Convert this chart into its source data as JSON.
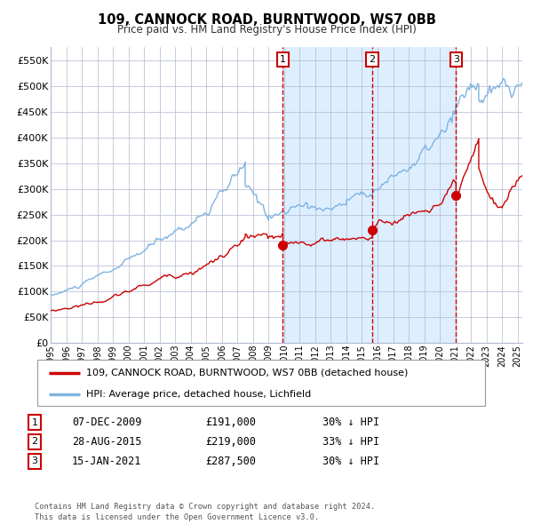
{
  "title": "109, CANNOCK ROAD, BURNTWOOD, WS7 0BB",
  "subtitle": "Price paid vs. HM Land Registry's House Price Index (HPI)",
  "ylabel_ticks": [
    "£0",
    "£50K",
    "£100K",
    "£150K",
    "£200K",
    "£250K",
    "£300K",
    "£350K",
    "£400K",
    "£450K",
    "£500K",
    "£550K"
  ],
  "ytick_values": [
    0,
    50000,
    100000,
    150000,
    200000,
    250000,
    300000,
    350000,
    400000,
    450000,
    500000,
    550000
  ],
  "ylim": [
    0,
    575000
  ],
  "xlim_start": 1995.0,
  "xlim_end": 2025.3,
  "sale_dates": [
    2009.92,
    2015.65,
    2021.04
  ],
  "sale_prices": [
    191000,
    219000,
    287500
  ],
  "sale_labels": [
    "1",
    "2",
    "3"
  ],
  "sale_date_strs": [
    "07-DEC-2009",
    "28-AUG-2015",
    "15-JAN-2021"
  ],
  "sale_price_strs": [
    "£191,000",
    "£219,000",
    "£287,500"
  ],
  "sale_hpi_strs": [
    "30% ↓ HPI",
    "33% ↓ HPI",
    "30% ↓ HPI"
  ],
  "hpi_color": "#7fb3e0",
  "price_color": "#cc0000",
  "shade_color": "#ddeeff",
  "grid_color": "#b0b8d0",
  "background_color": "#ffffff",
  "legend_label_price": "109, CANNOCK ROAD, BURNTWOOD, WS7 0BB (detached house)",
  "legend_label_hpi": "HPI: Average price, detached house, Lichfield",
  "footer": "Contains HM Land Registry data © Crown copyright and database right 2024.\nThis data is licensed under the Open Government Licence v3.0."
}
